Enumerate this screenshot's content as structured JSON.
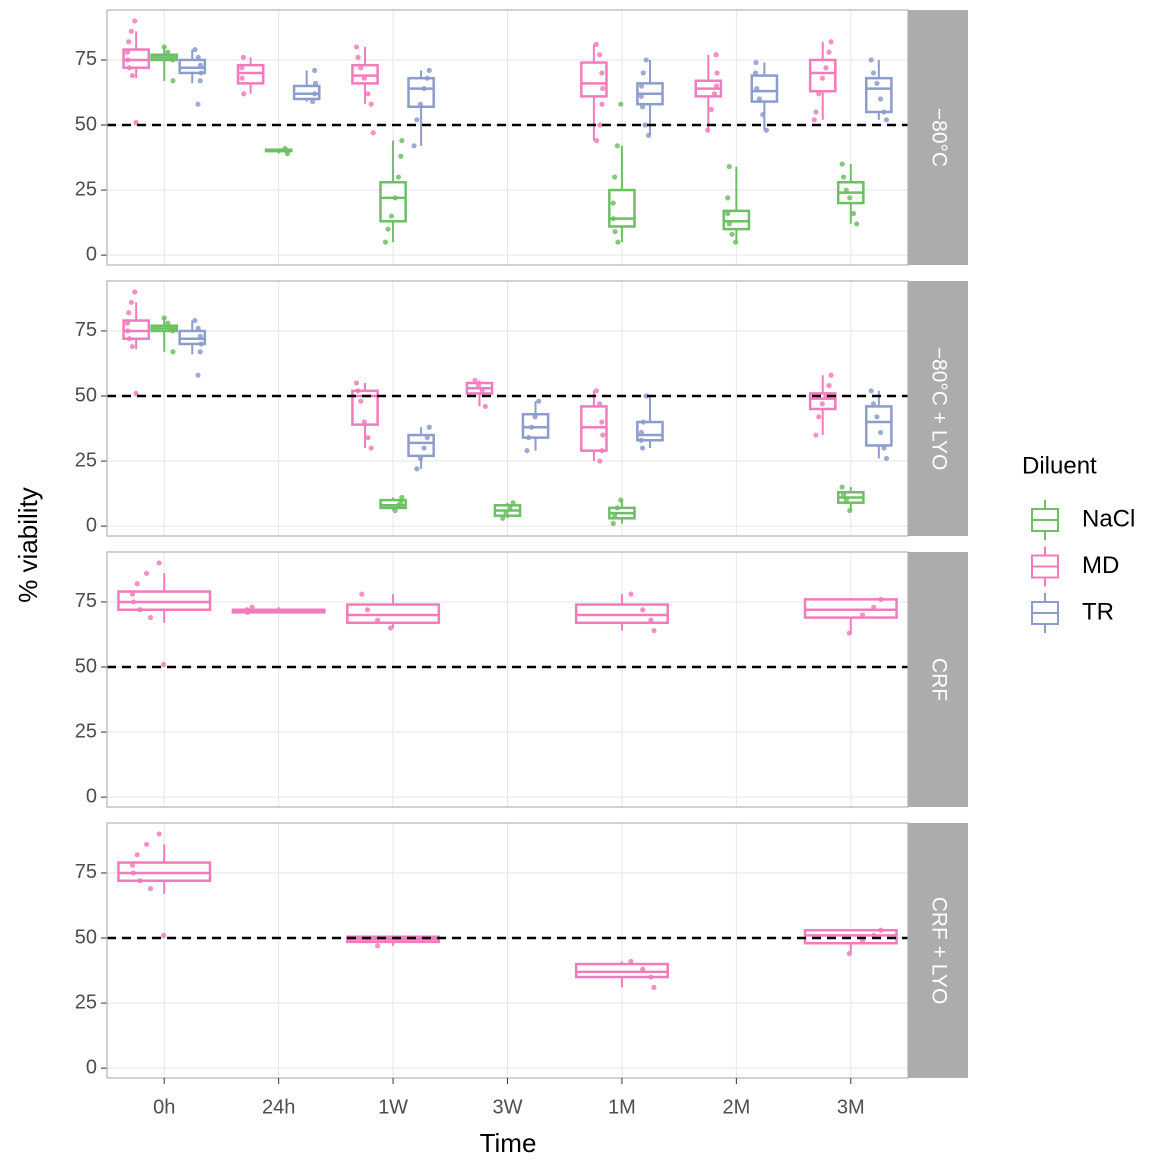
{
  "chart_data": {
    "type": "boxplot",
    "x_label": "Time",
    "y_label": "% viability",
    "categories": [
      "0h",
      "24h",
      "1W",
      "3W",
      "1M",
      "2M",
      "3M"
    ],
    "ylim": [
      -3.8,
      94.2
    ],
    "yticks": [
      0,
      25,
      50,
      75
    ],
    "grid": true,
    "hline": 50,
    "legend": {
      "title": "Diluent",
      "position": "right"
    },
    "series": [
      {
        "name": "NaCl",
        "color": "#6cbf63"
      },
      {
        "name": "MD",
        "color": "#f27bbd"
      },
      {
        "name": "TR",
        "color": "#8c9ccb"
      }
    ],
    "dodge_order": [
      1,
      0,
      2
    ],
    "facets": [
      {
        "label": "−80°C",
        "boxes": [
          [
            {
              "low": 67,
              "q1": 75,
              "median": 76,
              "q3": 77,
              "high": 80,
              "points": [
                80,
                78,
                76,
                75,
                67
              ]
            },
            {
              "low": 39,
              "q1": 40,
              "median": 40,
              "q3": 40.5,
              "high": 41,
              "points": [
                41,
                40,
                39
              ]
            },
            {
              "low": 5,
              "q1": 13,
              "median": 22,
              "q3": 28,
              "high": 44,
              "points": [
                44,
                38,
                30,
                22,
                15,
                10,
                5
              ]
            },
            null,
            {
              "low": 5,
              "q1": 11,
              "median": 14,
              "q3": 25,
              "high": 42,
              "points": [
                58,
                42,
                30,
                20,
                14,
                9,
                5
              ]
            },
            {
              "low": 5,
              "q1": 10,
              "median": 13,
              "q3": 17,
              "high": 34,
              "points": [
                34,
                22,
                16,
                12,
                8,
                5
              ]
            },
            {
              "low": 12,
              "q1": 20,
              "median": 24,
              "q3": 28,
              "high": 35,
              "points": [
                35,
                30,
                25,
                22,
                16,
                12
              ]
            }
          ],
          [
            {
              "low": 68,
              "q1": 72,
              "median": 75,
              "q3": 79,
              "high": 86,
              "points": [
                90,
                86,
                82,
                78,
                75,
                72,
                69,
                51
              ]
            },
            {
              "low": 62,
              "q1": 66,
              "median": 70,
              "q3": 73,
              "high": 76,
              "points": [
                76,
                72,
                68,
                62
              ]
            },
            {
              "low": 58,
              "q1": 66,
              "median": 69,
              "q3": 73,
              "high": 80,
              "points": [
                80,
                76,
                72,
                68,
                62,
                58,
                47
              ]
            },
            null,
            {
              "low": 44,
              "q1": 61,
              "median": 66,
              "q3": 74,
              "high": 81,
              "points": [
                81,
                77,
                70,
                64,
                58,
                50,
                44
              ]
            },
            {
              "low": 48,
              "q1": 61,
              "median": 64,
              "q3": 67,
              "high": 77,
              "points": [
                77,
                70,
                65,
                62,
                56,
                48
              ]
            },
            {
              "low": 52,
              "q1": 63,
              "median": 70,
              "q3": 75,
              "high": 82,
              "points": [
                82,
                78,
                72,
                68,
                62,
                55,
                52
              ]
            }
          ],
          [
            {
              "low": 66,
              "q1": 70,
              "median": 72,
              "q3": 75,
              "high": 79,
              "points": [
                79,
                76,
                73,
                70,
                67,
                58
              ]
            },
            {
              "low": 59,
              "q1": 60,
              "median": 62,
              "q3": 65,
              "high": 71,
              "points": [
                71,
                66,
                62,
                59
              ]
            },
            {
              "low": 42,
              "q1": 57,
              "median": 64,
              "q3": 68,
              "high": 71,
              "points": [
                71,
                68,
                64,
                58,
                52,
                42
              ]
            },
            null,
            {
              "low": 46,
              "q1": 58,
              "median": 62,
              "q3": 66,
              "high": 75,
              "points": [
                75,
                70,
                65,
                61,
                57,
                50,
                46
              ]
            },
            {
              "low": 48,
              "q1": 59,
              "median": 63,
              "q3": 69,
              "high": 74,
              "points": [
                74,
                70,
                64,
                60,
                54,
                48
              ]
            },
            {
              "low": 52,
              "q1": 55,
              "median": 64,
              "q3": 68,
              "high": 75,
              "points": [
                75,
                70,
                66,
                60,
                55,
                52
              ]
            }
          ]
        ]
      },
      {
        "label": "−80°C + LYO",
        "boxes": [
          [
            {
              "low": 67,
              "q1": 75,
              "median": 76,
              "q3": 77,
              "high": 80,
              "points": [
                80,
                78,
                76,
                75,
                67
              ]
            },
            null,
            {
              "low": 6,
              "q1": 7,
              "median": 8,
              "q3": 10,
              "high": 11,
              "points": [
                11,
                9,
                8,
                6
              ]
            },
            {
              "low": 3,
              "q1": 4,
              "median": 6,
              "q3": 8,
              "high": 9,
              "points": [
                9,
                7,
                5,
                3
              ]
            },
            {
              "low": 1,
              "q1": 3,
              "median": 5,
              "q3": 7,
              "high": 10,
              "points": [
                10,
                7,
                4,
                1
              ]
            },
            null,
            {
              "low": 6,
              "q1": 9,
              "median": 11,
              "q3": 13,
              "high": 15,
              "points": [
                15,
                12,
                10,
                6
              ]
            }
          ],
          [
            {
              "low": 68,
              "q1": 72,
              "median": 75,
              "q3": 79,
              "high": 86,
              "points": [
                90,
                86,
                82,
                78,
                75,
                72,
                69,
                51
              ]
            },
            null,
            {
              "low": 30,
              "q1": 39,
              "median": 50,
              "q3": 52,
              "high": 55,
              "points": [
                55,
                52,
                48,
                40,
                34,
                30
              ]
            },
            {
              "low": 46,
              "q1": 51,
              "median": 53,
              "q3": 55,
              "high": 56,
              "points": [
                56,
                54,
                52,
                46
              ]
            },
            {
              "low": 25,
              "q1": 29,
              "median": 38,
              "q3": 46,
              "high": 52,
              "points": [
                52,
                47,
                40,
                35,
                29,
                25
              ]
            },
            null,
            {
              "low": 35,
              "q1": 45,
              "median": 49,
              "q3": 51,
              "high": 58,
              "points": [
                58,
                54,
                50,
                47,
                42,
                35
              ]
            }
          ],
          [
            {
              "low": 66,
              "q1": 70,
              "median": 72,
              "q3": 75,
              "high": 79,
              "points": [
                79,
                76,
                73,
                70,
                67,
                58
              ]
            },
            null,
            {
              "low": 22,
              "q1": 27,
              "median": 32,
              "q3": 35,
              "high": 38,
              "points": [
                38,
                34,
                30,
                26,
                22
              ]
            },
            {
              "low": 29,
              "q1": 34,
              "median": 38,
              "q3": 43,
              "high": 48,
              "points": [
                48,
                42,
                38,
                34,
                29
              ]
            },
            {
              "low": 30,
              "q1": 33,
              "median": 35,
              "q3": 40,
              "high": 50,
              "points": [
                50,
                40,
                36,
                33,
                30
              ]
            },
            null,
            {
              "low": 26,
              "q1": 31,
              "median": 40,
              "q3": 46,
              "high": 52,
              "points": [
                52,
                47,
                42,
                36,
                30,
                26
              ]
            }
          ]
        ]
      },
      {
        "label": "CRF",
        "boxes": [
          [
            null,
            null,
            null,
            null,
            null,
            null,
            null
          ],
          [
            {
              "low": 67,
              "q1": 72,
              "median": 75,
              "q3": 79,
              "high": 86,
              "points": [
                90,
                86,
                82,
                78,
                75,
                72,
                69,
                51
              ]
            },
            {
              "low": 71,
              "q1": 71,
              "median": 71.5,
              "q3": 72,
              "high": 73,
              "points": [
                73,
                72,
                71
              ]
            },
            {
              "low": 65,
              "q1": 67,
              "median": 70,
              "q3": 74,
              "high": 78,
              "points": [
                78,
                72,
                68,
                65
              ]
            },
            null,
            {
              "low": 64,
              "q1": 67,
              "median": 70,
              "q3": 74,
              "high": 78,
              "points": [
                78,
                72,
                68,
                64
              ]
            },
            null,
            {
              "low": 63,
              "q1": 69,
              "median": 72,
              "q3": 76,
              "high": 76,
              "points": [
                76,
                73,
                70,
                63
              ]
            }
          ],
          [
            null,
            null,
            null,
            null,
            null,
            null,
            null
          ]
        ]
      },
      {
        "label": "CRF + LYO",
        "boxes": [
          [
            null,
            null,
            null,
            null,
            null,
            null,
            null
          ],
          [
            {
              "low": 67,
              "q1": 72,
              "median": 75,
              "q3": 79,
              "high": 86,
              "points": [
                90,
                86,
                82,
                78,
                75,
                72,
                69,
                51
              ]
            },
            null,
            {
              "low": 47,
              "q1": 48.5,
              "median": 49.5,
              "q3": 50.5,
              "high": 50.5,
              "points": [
                50,
                49,
                47
              ]
            },
            null,
            {
              "low": 31,
              "q1": 35,
              "median": 37,
              "q3": 40,
              "high": 41,
              "points": [
                41,
                38,
                35,
                31
              ]
            },
            null,
            {
              "low": 44,
              "q1": 48,
              "median": 51,
              "q3": 53,
              "high": 53,
              "points": [
                53,
                51,
                49,
                44
              ]
            }
          ],
          [
            null,
            null,
            null,
            null,
            null,
            null,
            null
          ]
        ]
      }
    ]
  }
}
